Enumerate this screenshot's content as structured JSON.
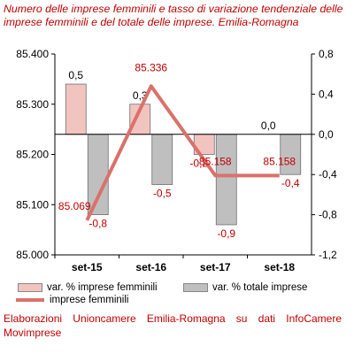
{
  "chart_data": {
    "type": "bar+line",
    "title": "Numero delle imprese femminili e tasso di variazione tendenziale delle imprese femminili e del totale delle imprese. Emilia-Romagna",
    "categories": [
      "set-15",
      "set-16",
      "set-17",
      "set-18"
    ],
    "left_axis": {
      "ylim": [
        85000,
        85400
      ],
      "ticks": [
        85000,
        85100,
        85200,
        85300,
        85400
      ],
      "tick_labels": [
        "85.000",
        "85.100",
        "85.200",
        "85.300",
        "85.400"
      ]
    },
    "right_axis": {
      "ylim": [
        -1.2,
        0.8
      ],
      "ticks": [
        -1.2,
        -0.8,
        -0.4,
        0.0,
        0.4,
        0.8
      ],
      "tick_labels": [
        "-1,2",
        "-0,8",
        "-0,4",
        "0,0",
        "0,4",
        "0,8"
      ]
    },
    "series": [
      {
        "name": "var. % imprese femminili",
        "kind": "bar",
        "axis": "right",
        "color": "#f2c4c0",
        "values": [
          0.5,
          0.3,
          -0.2,
          0.0
        ],
        "labels": [
          "0,5",
          "0,3",
          "-0,2",
          "0,0"
        ]
      },
      {
        "name": "var. % totale imprese",
        "kind": "bar",
        "axis": "right",
        "color": "#bfbfbf",
        "values": [
          -0.8,
          -0.5,
          -0.9,
          -0.4
        ],
        "labels": [
          "-0,8",
          "-0,5",
          "-0,9",
          "-0,4"
        ]
      },
      {
        "name": "imprese femminili",
        "kind": "line",
        "axis": "left",
        "color": "#d9726b",
        "values": [
          85069,
          85336,
          85158,
          85158
        ],
        "labels": [
          "85.069",
          "85.336",
          "85.158",
          "85.158"
        ]
      }
    ],
    "legend_position": "bottom",
    "grid": false
  },
  "source_text": "Elaborazioni Unioncamere Emilia-Romagna su dati InfoCamere Movimprese"
}
